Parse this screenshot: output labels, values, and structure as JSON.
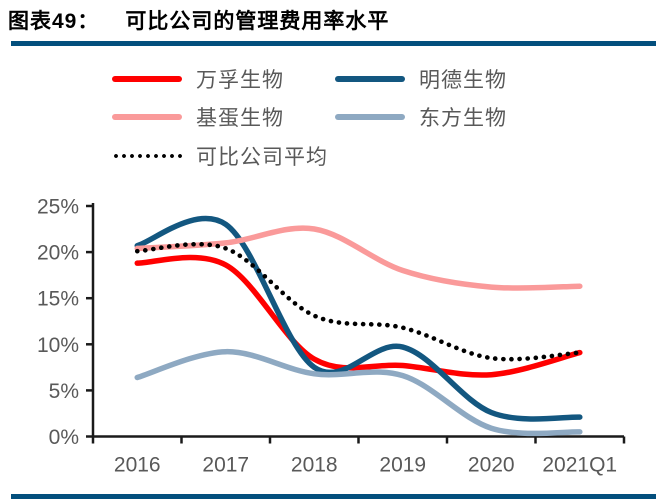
{
  "header": {
    "figure_label": "图表49：",
    "title": "可比公司的管理费用率水平"
  },
  "colors": {
    "rule_bar": "#034F7D",
    "axis_line": "#1a1a1a",
    "tick_label": "#595959",
    "legend_label": "#595959"
  },
  "chart_data": {
    "type": "line",
    "title": "可比公司的管理费用率水平",
    "categories": [
      "2016",
      "2017",
      "2018",
      "2019",
      "2020",
      "2021Q1"
    ],
    "series": [
      {
        "name": "万孚生物",
        "color": "#FF0000",
        "style": "solid",
        "values": [
          18.8,
          18.6,
          8.4,
          7.7,
          6.7,
          9.1
        ]
      },
      {
        "name": "明德生物",
        "color": "#135780",
        "style": "solid",
        "values": [
          20.7,
          23.0,
          7.5,
          9.7,
          2.6,
          2.1
        ]
      },
      {
        "name": "基蛋生物",
        "color": "#FA9A9A",
        "style": "solid",
        "values": [
          20.4,
          21.0,
          22.5,
          18.0,
          16.2,
          16.3
        ]
      },
      {
        "name": "东方生物",
        "color": "#8EA9C2",
        "style": "solid",
        "values": [
          6.4,
          9.2,
          6.8,
          6.6,
          0.9,
          0.5
        ]
      },
      {
        "name": "可比公司平均",
        "color": "#000000",
        "style": "dotted",
        "values": [
          20.1,
          20.4,
          13.1,
          11.8,
          8.5,
          9.1
        ]
      }
    ],
    "xlabel": "",
    "ylabel": "",
    "ylim": [
      0,
      25
    ],
    "yticks": [
      0,
      5,
      10,
      15,
      20,
      25
    ],
    "ytick_suffix": "%",
    "grid": false,
    "legend_position": "top-left"
  }
}
